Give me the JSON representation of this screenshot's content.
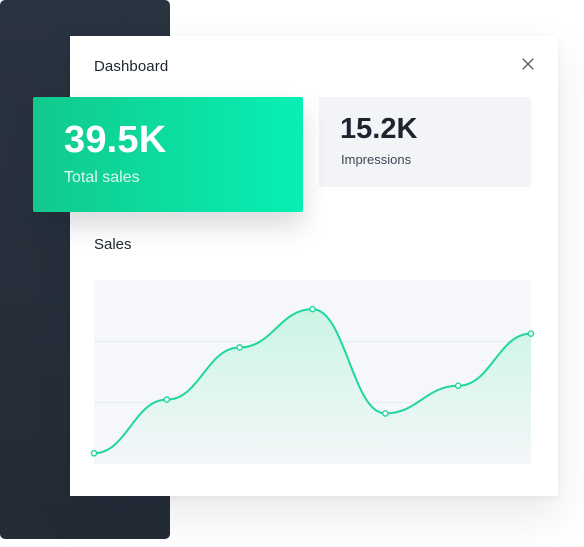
{
  "window": {
    "title": "Dashboard",
    "close_icon": "close-icon"
  },
  "stats": [
    {
      "value": "39.5K",
      "label": "Total sales",
      "accent": "#07f0b4"
    },
    {
      "value": "15.2K",
      "label": "Impressions"
    }
  ],
  "colors": {
    "accent_green": "#12c98c",
    "sidebar_dark": "#262e39",
    "line": "#1fd69c"
  },
  "chart_data": {
    "type": "area",
    "title": "Sales",
    "xlabel": "",
    "ylabel": "",
    "x": [
      0,
      1,
      2,
      3,
      4,
      5,
      6
    ],
    "values": [
      7,
      42,
      76,
      101,
      33,
      51,
      85
    ],
    "ylim": [
      0,
      120
    ],
    "grid": true
  }
}
